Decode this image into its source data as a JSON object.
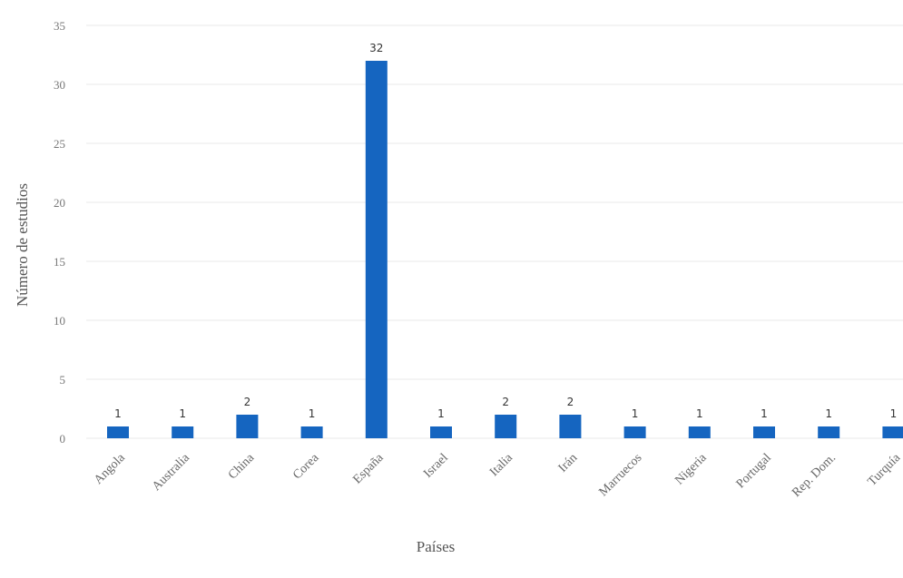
{
  "chart_data": {
    "type": "bar",
    "title": "",
    "xlabel": "Países",
    "ylabel": "Número de estudios",
    "categories": [
      "Angola",
      "Australia",
      "China",
      "Corea",
      "España",
      "Israel",
      "Italia",
      "Irán",
      "Marruecos",
      "Nigeria",
      "Portugal",
      "Rep. Dom.",
      "Turquía"
    ],
    "values": [
      1,
      1,
      2,
      1,
      32,
      1,
      2,
      2,
      1,
      1,
      1,
      1,
      1
    ],
    "data_labels": [
      "1",
      "1",
      "2",
      "1",
      "32",
      "1",
      "2",
      "2",
      "1",
      "1",
      "1",
      "1",
      "1"
    ],
    "y_ticks": [
      "0",
      "5",
      "10",
      "15",
      "20",
      "25",
      "30",
      "35"
    ],
    "ylim": [
      0,
      35
    ],
    "grid": true,
    "legend": "none",
    "bar_color": "#1565c0",
    "grid_color": "#e9e9e9"
  }
}
